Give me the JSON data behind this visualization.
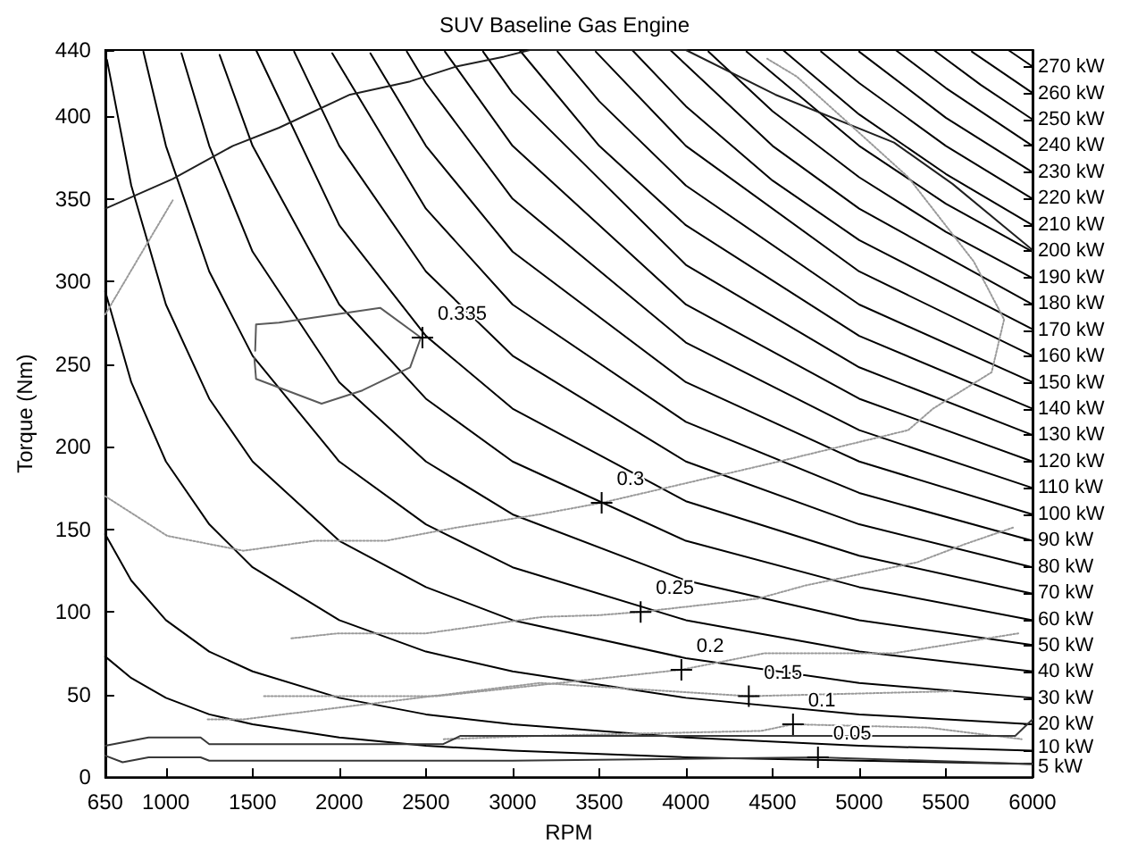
{
  "chart_data": {
    "type": "line",
    "title": "SUV Baseline Gas Engine",
    "xlabel": "RPM",
    "ylabel": "Torque (Nm)",
    "marker": "none",
    "line_style": "solid",
    "xlim": [
      650,
      6000
    ],
    "xticks": [
      650,
      1000,
      1500,
      2000,
      2500,
      3000,
      3500,
      4000,
      4500,
      5000,
      5500,
      6000
    ],
    "ylim": [
      0,
      440
    ],
    "yticks": [
      0,
      50,
      100,
      150,
      200,
      250,
      300,
      350,
      400,
      440
    ],
    "y2lim": [
      0,
      276.5
    ],
    "y2ticks": [
      {
        "value": 5,
        "label": "5 kW"
      },
      {
        "value": 10,
        "label": "10 kW"
      },
      {
        "value": 20,
        "label": "20 kW"
      },
      {
        "value": 30,
        "label": "30 kW"
      },
      {
        "value": 40,
        "label": "40 kW"
      },
      {
        "value": 50,
        "label": "50 kW"
      },
      {
        "value": 60,
        "label": "60 kW"
      },
      {
        "value": 70,
        "label": "70 kW"
      },
      {
        "value": 80,
        "label": "80 kW"
      },
      {
        "value": 90,
        "label": "90 kW"
      },
      {
        "value": 100,
        "label": "100 kW"
      },
      {
        "value": 110,
        "label": "110 kW"
      },
      {
        "value": 120,
        "label": "120 kW"
      },
      {
        "value": 130,
        "label": "130 kW"
      },
      {
        "value": 140,
        "label": "140 kW"
      },
      {
        "value": 150,
        "label": "150 kW"
      },
      {
        "value": 160,
        "label": "160 kW"
      },
      {
        "value": 170,
        "label": "170 kW"
      },
      {
        "value": 180,
        "label": "180 kW"
      },
      {
        "value": 190,
        "label": "190 kW"
      },
      {
        "value": 200,
        "label": "200 kW"
      },
      {
        "value": 210,
        "label": "210 kW"
      },
      {
        "value": 220,
        "label": "220 kW"
      },
      {
        "value": 230,
        "label": "230 kW"
      },
      {
        "value": 240,
        "label": "240 kW"
      },
      {
        "value": 250,
        "label": "250 kW"
      },
      {
        "value": 260,
        "label": "260 kW"
      },
      {
        "value": 270,
        "label": "270 kW"
      }
    ],
    "annotations": [
      {
        "text": "0.335",
        "x": 2480,
        "y": 266
      },
      {
        "text": "0.3",
        "x": 3514,
        "y": 166
      },
      {
        "text": "0.25",
        "x": 3739,
        "y": 100
      },
      {
        "text": "0.2",
        "x": 3974,
        "y": 65
      },
      {
        "text": "0.15",
        "x": 4363,
        "y": 49
      },
      {
        "text": "0.1",
        "x": 4618,
        "y": 32
      },
      {
        "text": "0.05",
        "x": 4762,
        "y": 12
      }
    ],
    "series": [
      {
        "color": "#000000",
        "x": [
          650,
          800,
          1000,
          1250,
          1500,
          2000,
          2500,
          3000,
          4000,
          5000,
          6000
        ],
        "values": [
          73,
          60,
          48,
          38,
          32,
          24,
          19,
          16,
          12,
          10,
          8
        ]
      },
      {
        "color": "#000000",
        "x": [
          650,
          800,
          1000,
          1250,
          1500,
          2000,
          2500,
          3000,
          4000,
          5000,
          6000
        ],
        "values": [
          147,
          119,
          95,
          76,
          64,
          48,
          38,
          32,
          24,
          19,
          16
        ]
      },
      {
        "color": "#000000",
        "x": [
          650,
          800,
          1000,
          1250,
          1500,
          2000,
          2500,
          3000,
          4000,
          5000,
          6000
        ],
        "values": [
          294,
          239,
          191,
          153,
          127,
          95,
          76,
          64,
          48,
          38,
          32
        ]
      },
      {
        "color": "#000000",
        "x": [
          660,
          800,
          1000,
          1250,
          1500,
          2000,
          2500,
          3000,
          4000,
          5000,
          6000
        ],
        "values": [
          434,
          358,
          286,
          229,
          191,
          143,
          115,
          95,
          72,
          57,
          48
        ]
      },
      {
        "color": "#000000",
        "x": [
          870,
          1000,
          1250,
          1500,
          2000,
          2500,
          3000,
          4000,
          5000,
          6000
        ],
        "values": [
          439,
          382,
          306,
          255,
          191,
          153,
          127,
          95,
          76,
          64
        ]
      },
      {
        "color": "#000000",
        "x": [
          1090,
          1250,
          1500,
          2000,
          2500,
          3000,
          4000,
          5000,
          6000
        ],
        "values": [
          438,
          382,
          318,
          239,
          191,
          159,
          119,
          95,
          80
        ]
      },
      {
        "color": "#000000",
        "x": [
          1310,
          1500,
          2000,
          2500,
          3000,
          4000,
          5000,
          6000
        ],
        "values": [
          437,
          382,
          286,
          229,
          191,
          143,
          115,
          95
        ]
      },
      {
        "color": "#000000",
        "x": [
          1520,
          2000,
          2500,
          3000,
          4000,
          5000,
          6000
        ],
        "values": [
          440,
          334,
          267,
          223,
          167,
          134,
          111
        ]
      },
      {
        "color": "#000000",
        "x": [
          1740,
          2000,
          2500,
          3000,
          4000,
          5000,
          6000
        ],
        "values": [
          439,
          382,
          306,
          255,
          191,
          153,
          127
        ]
      },
      {
        "color": "#000000",
        "x": [
          1960,
          2500,
          3000,
          4000,
          5000,
          6000
        ],
        "values": [
          438,
          344,
          286,
          215,
          172,
          143
        ]
      },
      {
        "color": "#000000",
        "x": [
          2180,
          2500,
          3000,
          4000,
          5000,
          6000
        ],
        "values": [
          438,
          382,
          318,
          239,
          191,
          159
        ]
      },
      {
        "color": "#000000",
        "x": [
          2390,
          2500,
          3000,
          4000,
          5000,
          6000
        ],
        "values": [
          439,
          420,
          350,
          263,
          210,
          175
        ]
      },
      {
        "color": "#000000",
        "x": [
          2610,
          3000,
          4000,
          5000,
          6000
        ],
        "values": [
          439,
          382,
          286,
          229,
          191
        ]
      },
      {
        "color": "#000000",
        "x": [
          2830,
          3000,
          4000,
          5000,
          6000
        ],
        "values": [
          439,
          414,
          310,
          248,
          207
        ]
      },
      {
        "color": "#000000",
        "x": [
          3040,
          3500,
          4000,
          5000,
          6000
        ],
        "values": [
          440,
          382,
          334,
          267,
          223
        ]
      },
      {
        "color": "#000000",
        "x": [
          3260,
          3500,
          4000,
          5000,
          6000
        ],
        "values": [
          439,
          409,
          358,
          286,
          239
        ]
      },
      {
        "color": "#000000",
        "x": [
          3480,
          4000,
          5000,
          6000
        ],
        "values": [
          439,
          382,
          306,
          255
        ]
      },
      {
        "color": "#000000",
        "x": [
          3690,
          4000,
          4500,
          5000,
          6000
        ],
        "values": [
          440,
          406,
          361,
          325,
          271
        ]
      },
      {
        "color": "#000000",
        "x": [
          3910,
          4500,
          5000,
          6000
        ],
        "values": [
          440,
          382,
          344,
          286
        ]
      },
      {
        "color": "#000000",
        "x": [
          4130,
          4500,
          5000,
          5500,
          6000
        ],
        "values": [
          439,
          403,
          363,
          330,
          302
        ]
      },
      {
        "color": "#000000",
        "x": [
          4350,
          5000,
          5500,
          6000
        ],
        "values": [
          439,
          382,
          347,
          318
        ]
      },
      {
        "color": "#000000",
        "x": [
          4560,
          5000,
          5500,
          6000
        ],
        "values": [
          440,
          401,
          365,
          334
        ]
      },
      {
        "color": "#000000",
        "x": [
          4780,
          5000,
          5500,
          6000
        ],
        "values": [
          439,
          420,
          382,
          350
        ]
      },
      {
        "color": "#000000",
        "x": [
          5000,
          5500,
          6000
        ],
        "values": [
          439,
          399,
          366
        ]
      },
      {
        "color": "#000000",
        "x": [
          5210,
          5500,
          6000
        ],
        "values": [
          440,
          417,
          382
        ]
      },
      {
        "color": "#000000",
        "x": [
          5430,
          5700,
          6000
        ],
        "values": [
          440,
          419,
          398
        ]
      },
      {
        "color": "#000000",
        "x": [
          5650,
          6000
        ],
        "values": [
          439,
          414
        ]
      },
      {
        "color": "#000000",
        "x": [
          5860,
          6000
        ],
        "values": [
          440,
          430
        ]
      },
      {
        "color": "#202020",
        "x": [
          650,
          1039,
          1386,
          1653,
          2062,
          2409,
          2675,
          2951,
          3100,
          4000,
          4516,
          5201,
          5538,
          5988,
          6000
        ],
        "values": [
          344,
          362,
          382,
          393,
          413,
          421,
          430,
          436,
          440,
          440,
          413,
          384,
          359,
          320,
          318
        ]
      },
      {
        "color": "#5a5a5a",
        "x": [
          1515,
          1520,
          1653,
          2236,
          2471,
          2409,
          2133,
          1898,
          1520,
          1510
        ],
        "values": [
          258,
          274,
          275,
          284,
          266,
          248,
          234,
          226,
          241,
          254
        ]
      },
      {
        "color": "#9a9a9a",
        "line_style": "dotted",
        "x": [
          650,
          875,
          1039
        ],
        "values": [
          280,
          320,
          349
        ]
      },
      {
        "color": "#9a9a9a",
        "line_style": "dotted",
        "x": [
          650,
          1008,
          1448,
          1857,
          2266,
          2675,
          3155,
          3514,
          4537,
          5283,
          5426,
          5764,
          5836,
          5661,
          5283,
          4946,
          4639,
          4465
        ],
        "values": [
          170,
          146,
          137,
          143,
          143,
          151,
          159,
          166,
          191,
          210,
          223,
          245,
          277,
          312,
          363,
          395,
          424,
          435
        ]
      },
      {
        "color": "#9a9a9a",
        "line_style": "dotted",
        "x": [
          1724,
          1990,
          2500,
          3176,
          3494,
          3739,
          4414,
          4690,
          5334,
          5610,
          5887
        ],
        "values": [
          84,
          87,
          87,
          97,
          98,
          100,
          108,
          116,
          130,
          141,
          151
        ]
      },
      {
        "color": "#9a9a9a",
        "line_style": "dotted",
        "x": [
          1566,
          2562,
          3974,
          4455,
          5201,
          5918
        ],
        "values": [
          49,
          49,
          65,
          75,
          75,
          87
        ]
      },
      {
        "color": "#9a9a9a",
        "line_style": "dotted",
        "x": [
          1241,
          1448,
          3155,
          4363,
          5538
        ],
        "values": [
          35,
          35,
          57,
          49,
          52
        ]
      },
      {
        "color": "#9a9a9a",
        "line_style": "dotted",
        "x": [
          2603,
          3155,
          4435,
          4618,
          5396,
          5937
        ],
        "values": [
          23,
          25,
          28,
          32,
          30,
          23
        ]
      },
      {
        "color": "#383838",
        "x": [
          650,
          900,
          1200,
          1250,
          2600,
          2700,
          5900,
          6000
        ],
        "values": [
          19,
          24,
          24,
          20,
          20,
          25,
          25,
          35
        ]
      },
      {
        "color": "#383838",
        "x": [
          650,
          750,
          900,
          1200,
          1250,
          3000,
          4762,
          6000
        ],
        "values": [
          13,
          9,
          12,
          12,
          10,
          10,
          12,
          8
        ]
      }
    ]
  }
}
